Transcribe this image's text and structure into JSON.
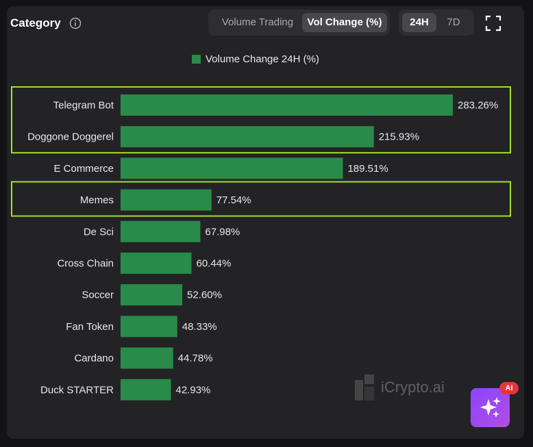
{
  "header": {
    "title": "Category",
    "metric_tabs": [
      "Volume Trading",
      "Vol Change (%)"
    ],
    "active_metric": "Vol Change (%)",
    "period_tabs": [
      "24H",
      "7D"
    ],
    "active_period": "24H"
  },
  "colors": {
    "bar": "#2a8a4a",
    "highlight": "#a2e02c",
    "text": "#e8e8ea"
  },
  "chart_data": {
    "type": "bar",
    "orientation": "horizontal",
    "title": "",
    "legend": [
      "Volume Change 24H (%)"
    ],
    "legend_placement": "top-center",
    "categories": [
      "Telegram Bot",
      "Doggone Doggerel",
      "E Commerce",
      "Memes",
      "De Sci",
      "Cross Chain",
      "Soccer",
      "Fan Token",
      "Cardano",
      "Duck STARTER"
    ],
    "values": [
      283.26,
      215.93,
      189.51,
      77.54,
      67.98,
      60.44,
      52.6,
      48.33,
      44.78,
      42.93
    ],
    "value_labels": [
      "283.26%",
      "215.93%",
      "189.51%",
      "77.54%",
      "67.98%",
      "60.44%",
      "52.60%",
      "48.33%",
      "44.78%",
      "42.93%"
    ],
    "xlim": [
      0,
      283.26
    ],
    "grid": false,
    "highlighted_groups": [
      [
        "Telegram Bot",
        "Doggone Doggerel"
      ],
      [
        "Memes"
      ]
    ]
  },
  "watermark": "iCrypto.ai",
  "ai_badge": "AI"
}
